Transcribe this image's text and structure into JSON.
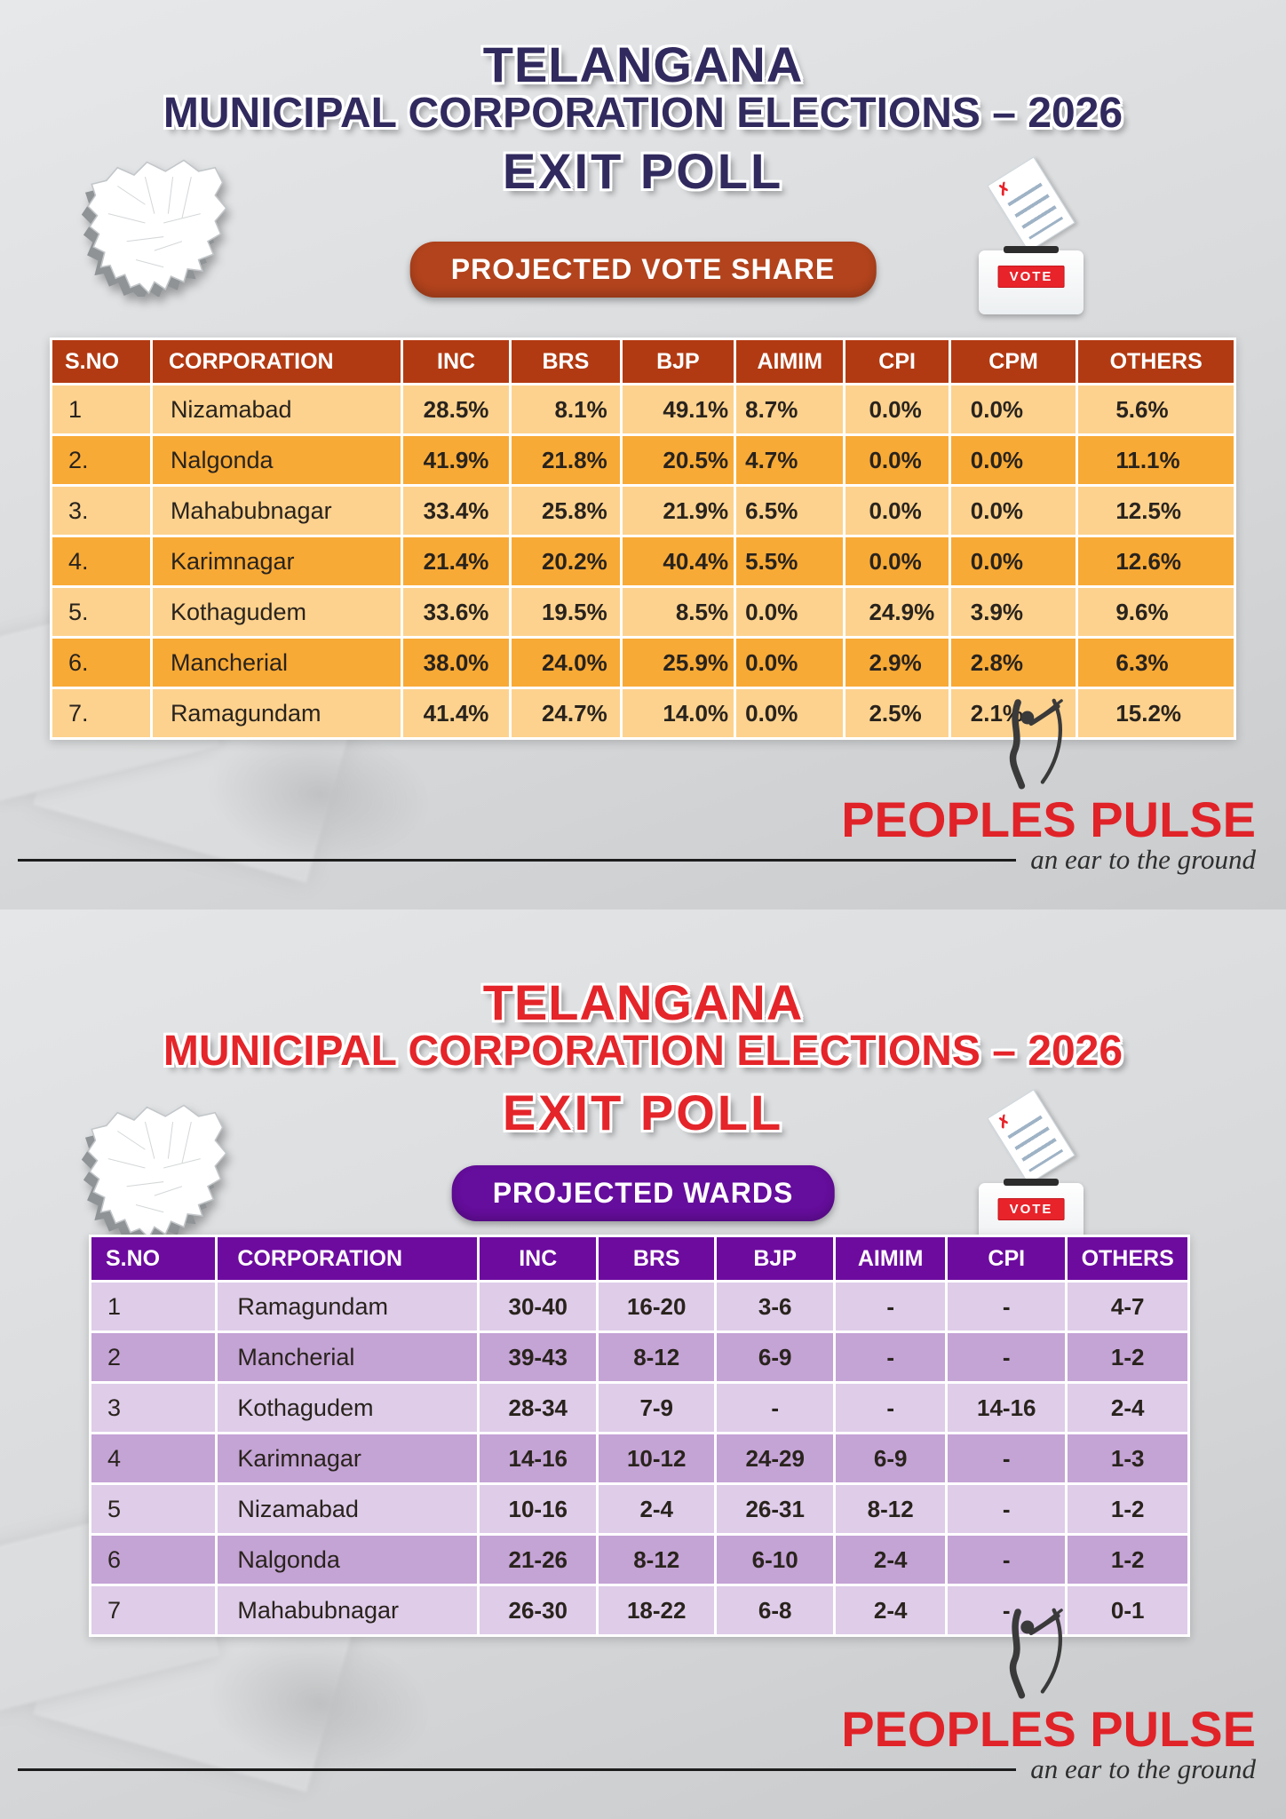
{
  "poster": {
    "vote_label": "VOTE",
    "brand": {
      "name": "PEOPLES PULSE",
      "tagline": "an ear to the ground"
    }
  },
  "panels": [
    {
      "title_line1": "TELANGANA",
      "title_line2": "MUNICIPAL CORPORATION ELECTIONS – 2026",
      "title_line3": "EXIT POLL",
      "badge": "PROJECTED VOTE SHARE"
    },
    {
      "title_line1": "TELANGANA",
      "title_line2": "MUNICIPAL CORPORATION ELECTIONS – 2026",
      "title_line3": "EXIT POLL",
      "badge": "PROJECTED WARDS"
    }
  ],
  "colors": {
    "panel1_title": "#312a5e",
    "panel1_badge": "#b2431d",
    "table1_header": "#b23a12",
    "table1_row_light": "#fdd28e",
    "table1_row_dark": "#f8aa36",
    "panel2_title": "#e4252a",
    "panel2_badge": "#650d9c",
    "table2_header": "#6d0b9f",
    "table2_row_light": "#decce9",
    "table2_row_dark": "#c4a3d5",
    "brand_red": "#e02328",
    "vote_red": "#e8232a"
  },
  "chart_data": [
    {
      "type": "table",
      "title": "PROJECTED VOTE SHARE",
      "columns": [
        "S.NO",
        "CORPORATION",
        "INC",
        "BRS",
        "BJP",
        "AIMIM",
        "CPI",
        "CPM",
        "OTHERS"
      ],
      "rows": [
        [
          "1",
          "Nizamabad",
          "28.5%",
          "8.1%",
          "49.1%",
          "8.7%",
          "0.0%",
          "0.0%",
          "5.6%"
        ],
        [
          "2.",
          "Nalgonda",
          "41.9%",
          "21.8%",
          "20.5%",
          "4.7%",
          "0.0%",
          "0.0%",
          "11.1%"
        ],
        [
          "3.",
          "Mahabubnagar",
          "33.4%",
          "25.8%",
          "21.9%",
          "6.5%",
          "0.0%",
          "0.0%",
          "12.5%"
        ],
        [
          "4.",
          "Karimnagar",
          "21.4%",
          "20.2%",
          "40.4%",
          "5.5%",
          "0.0%",
          "0.0%",
          "12.6%"
        ],
        [
          "5.",
          "Kothagudem",
          "33.6%",
          "19.5%",
          "8.5%",
          "0.0%",
          "24.9%",
          "3.9%",
          "9.6%"
        ],
        [
          "6.",
          "Mancherial",
          "38.0%",
          "24.0%",
          "25.9%",
          "0.0%",
          "2.9%",
          "2.8%",
          "6.3%"
        ],
        [
          "7.",
          "Ramagundam",
          "41.4%",
          "24.7%",
          "14.0%",
          "0.0%",
          "2.5%",
          "2.1%",
          "15.2%"
        ]
      ]
    },
    {
      "type": "table",
      "title": "PROJECTED WARDS",
      "columns": [
        "S.NO",
        "CORPORATION",
        "INC",
        "BRS",
        "BJP",
        "AIMIM",
        "CPI",
        "OTHERS"
      ],
      "rows": [
        [
          "1",
          "Ramagundam",
          "30-40",
          "16-20",
          "3-6",
          "-",
          "-",
          "4-7"
        ],
        [
          "2",
          "Mancherial",
          "39-43",
          "8-12",
          "6-9",
          "-",
          "-",
          "1-2"
        ],
        [
          "3",
          "Kothagudem",
          "28-34",
          "7-9",
          "-",
          "-",
          "14-16",
          "2-4"
        ],
        [
          "4",
          "Karimnagar",
          "14-16",
          "10-12",
          "24-29",
          "6-9",
          "-",
          "1-3"
        ],
        [
          "5",
          "Nizamabad",
          "10-16",
          "2-4",
          "26-31",
          "8-12",
          "-",
          "1-2"
        ],
        [
          "6",
          "Nalgonda",
          "21-26",
          "8-12",
          "6-10",
          "2-4",
          "-",
          "1-2"
        ],
        [
          "7",
          "Mahabubnagar",
          "26-30",
          "18-22",
          "6-8",
          "2-4",
          "-",
          "0-1"
        ]
      ]
    }
  ]
}
